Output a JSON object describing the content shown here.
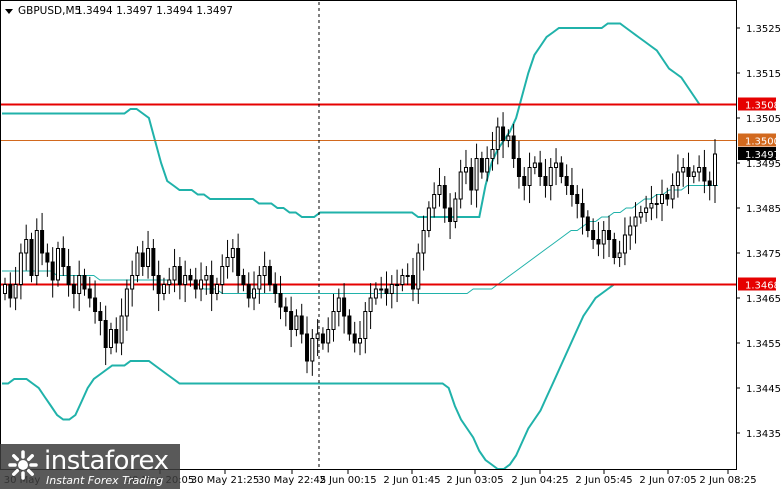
{
  "header": {
    "symbol": "GBPUSD,M5",
    "ohlc": "1.3494 1.3497 1.3494 1.3497"
  },
  "watermark": {
    "name": "instaforex",
    "tagline": "Instant Forex Trading"
  },
  "colors": {
    "background": "#ffffff",
    "bands": "#20b2aa",
    "middle_band": "#20b2aa",
    "candles": "#000000",
    "level_line": "#e60000",
    "level_1_3500": "#d2691e",
    "price_tag": "#000000"
  },
  "chart_data": {
    "type": "candlestick",
    "title": "",
    "ylim": [
      1.34295,
      1.35345
    ],
    "yticks": [
      "1.3525",
      "1.3515",
      "1.3505",
      "1.3495",
      "1.3485",
      "1.3475",
      "1.3465",
      "1.3455",
      "1.3445",
      "1.3435"
    ],
    "xticks": [
      "30 May",
      "30 May 20:05",
      "30 May 21:25",
      "30 May 22:45",
      "2 Jun 00:15",
      "2 Jun 01:45",
      "2 Jun 03:05",
      "2 Jun 04:25",
      "2 Jun 05:45",
      "2 Jun 07:05",
      "2 Jun 08:25"
    ],
    "grid": false,
    "separator_time": "2 Jun 00:00",
    "levels": [
      {
        "value": 1.3508,
        "label": "1.3508",
        "color": "#e60000"
      },
      {
        "value": 1.35,
        "label": "1.3500",
        "color": "#d2691e"
      },
      {
        "value": 1.3468,
        "label": "1.3468",
        "color": "#e60000"
      }
    ],
    "current_price": {
      "value": 1.3497,
      "label": "1.3497"
    },
    "close": [
      1.3468,
      1.3465,
      1.3468,
      1.3475,
      1.3478,
      1.347,
      1.348,
      1.3475,
      1.3473,
      1.3469,
      1.3476,
      1.3472,
      1.3468,
      1.3466,
      1.347,
      1.3467,
      1.3465,
      1.3462,
      1.346,
      1.3454,
      1.3458,
      1.3455,
      1.3461,
      1.3467,
      1.347,
      1.3475,
      1.3472,
      1.3476,
      1.347,
      1.3466,
      1.3468,
      1.3469,
      1.3472,
      1.3468,
      1.347,
      1.3469,
      1.3467,
      1.3469,
      1.347,
      1.3466,
      1.3468,
      1.3472,
      1.3474,
      1.3476,
      1.347,
      1.3468,
      1.3465,
      1.3467,
      1.347,
      1.3472,
      1.3468,
      1.3466,
      1.3463,
      1.3462,
      1.3458,
      1.3461,
      1.3457,
      1.3451,
      1.3456,
      1.3457,
      1.3455,
      1.3458,
      1.3462,
      1.3465,
      1.3461,
      1.3457,
      1.3455,
      1.3456,
      1.3462,
      1.3465,
      1.3467,
      1.3467,
      1.3466,
      1.3468,
      1.3468,
      1.347,
      1.347,
      1.3467,
      1.3475,
      1.348,
      1.3485,
      1.3488,
      1.349,
      1.3485,
      1.3482,
      1.3487,
      1.3493,
      1.3494,
      1.3489,
      1.3496,
      1.3493,
      1.3496,
      1.3498,
      1.3503,
      1.35,
      1.3501,
      1.3496,
      1.3492,
      1.349,
      1.3494,
      1.3495,
      1.3492,
      1.349,
      1.3494,
      1.3495,
      1.3492,
      1.349,
      1.3488,
      1.3486,
      1.3483,
      1.348,
      1.3478,
      1.3477,
      1.348,
      1.3478,
      1.3474,
      1.3475,
      1.3479,
      1.3481,
      1.3483,
      1.3484,
      1.3485,
      1.3486,
      1.3486,
      1.3488,
      1.3487,
      1.349,
      1.3493,
      1.3494,
      1.3492,
      1.3493,
      1.3494,
      1.3491,
      1.349,
      1.3497
    ],
    "bands": {
      "upper": [
        1.3506,
        1.3506,
        1.3506,
        1.3506,
        1.3506,
        1.3506,
        1.3506,
        1.3506,
        1.3506,
        1.3506,
        1.3506,
        1.3506,
        1.3506,
        1.3506,
        1.3506,
        1.3506,
        1.3506,
        1.3506,
        1.3506,
        1.3506,
        1.3506,
        1.3507,
        1.3507,
        1.3506,
        1.3505,
        1.35,
        1.3495,
        1.3491,
        1.349,
        1.3489,
        1.3489,
        1.3489,
        1.3488,
        1.3488,
        1.3487,
        1.3487,
        1.3487,
        1.3487,
        1.3487,
        1.3487,
        1.3487,
        1.3487,
        1.3486,
        1.3486,
        1.3486,
        1.3485,
        1.3485,
        1.3484,
        1.3484,
        1.3483,
        1.3483,
        1.3483,
        1.3484,
        1.3484,
        1.3484,
        1.3484,
        1.3484,
        1.3484,
        1.3484,
        1.3484,
        1.3484,
        1.3484,
        1.3484,
        1.3484,
        1.3484,
        1.3484,
        1.3484,
        1.3484,
        1.3483,
        1.3483,
        1.3483,
        1.3483,
        1.3483,
        1.3483,
        1.3483,
        1.3483,
        1.3483,
        1.3483,
        1.3483,
        1.349,
        1.3495,
        1.3498,
        1.35,
        1.3502,
        1.3505,
        1.351,
        1.3515,
        1.3519,
        1.3521,
        1.3523,
        1.3524,
        1.3525,
        1.3525,
        1.3525,
        1.3525,
        1.3525,
        1.3525,
        1.3525,
        1.3525,
        1.3526,
        1.3526,
        1.3526,
        1.3525,
        1.3524,
        1.3523,
        1.3522,
        1.3521,
        1.352,
        1.3518,
        1.3516,
        1.3515,
        1.3514,
        1.3512,
        1.351,
        1.3508,
        1.3508,
        1.3508,
        1.3508
      ],
      "middle": [
        1.3471,
        1.3471,
        1.3471,
        1.3471,
        1.3471,
        1.3471,
        1.3471,
        1.3471,
        1.3471,
        1.347,
        1.347,
        1.347,
        1.347,
        1.347,
        1.347,
        1.347,
        1.3469,
        1.3469,
        1.3469,
        1.3469,
        1.3469,
        1.3469,
        1.3469,
        1.3469,
        1.3469,
        1.3469,
        1.3469,
        1.3469,
        1.3468,
        1.3468,
        1.3468,
        1.3468,
        1.3468,
        1.3467,
        1.3467,
        1.3467,
        1.3466,
        1.3466,
        1.3466,
        1.3466,
        1.3466,
        1.3466,
        1.3466,
        1.3466,
        1.3466,
        1.3466,
        1.3466,
        1.3466,
        1.3466,
        1.3466,
        1.3466,
        1.3466,
        1.3466,
        1.3466,
        1.3466,
        1.3466,
        1.3466,
        1.3466,
        1.3466,
        1.3466,
        1.3466,
        1.3466,
        1.3466,
        1.3466,
        1.3466,
        1.3466,
        1.3466,
        1.3466,
        1.3466,
        1.3466,
        1.3466,
        1.3466,
        1.3466,
        1.3466,
        1.3466,
        1.3466,
        1.3466,
        1.3467,
        1.3467,
        1.3467,
        1.3467,
        1.3468,
        1.3469,
        1.347,
        1.3471,
        1.3472,
        1.3473,
        1.3474,
        1.3475,
        1.3476,
        1.3477,
        1.3478,
        1.3479,
        1.348,
        1.348,
        1.3481,
        1.3482,
        1.3482,
        1.3483,
        1.3483,
        1.3484,
        1.3484,
        1.3485,
        1.3485,
        1.3486,
        1.3487,
        1.3487,
        1.3488,
        1.3488,
        1.3489,
        1.3489,
        1.3489,
        1.349,
        1.349,
        1.349,
        1.349,
        1.349,
        1.349
      ],
      "lower": [
        1.3446,
        1.3446,
        1.3447,
        1.3447,
        1.3447,
        1.3446,
        1.3445,
        1.3443,
        1.3441,
        1.3439,
        1.3438,
        1.3438,
        1.3439,
        1.3442,
        1.3445,
        1.3447,
        1.3448,
        1.3449,
        1.345,
        1.345,
        1.345,
        1.3451,
        1.3451,
        1.3451,
        1.3451,
        1.345,
        1.3449,
        1.3448,
        1.3447,
        1.3446,
        1.3446,
        1.3446,
        1.3446,
        1.3446,
        1.3446,
        1.3446,
        1.3446,
        1.3446,
        1.3446,
        1.3446,
        1.3446,
        1.3446,
        1.3446,
        1.3446,
        1.3446,
        1.3446,
        1.3446,
        1.3446,
        1.3446,
        1.3446,
        1.3446,
        1.3446,
        1.3446,
        1.3446,
        1.3446,
        1.3446,
        1.3446,
        1.3446,
        1.3446,
        1.3446,
        1.3446,
        1.3446,
        1.3446,
        1.3446,
        1.3446,
        1.3446,
        1.3446,
        1.3446,
        1.3446,
        1.3446,
        1.3446,
        1.3446,
        1.3446,
        1.3445,
        1.3441,
        1.3438,
        1.3436,
        1.3434,
        1.3431,
        1.3429,
        1.3428,
        1.3427,
        1.3427,
        1.3428,
        1.343,
        1.3433,
        1.3436,
        1.3438,
        1.344,
        1.3443,
        1.3446,
        1.3449,
        1.3452,
        1.3455,
        1.3458,
        1.3461,
        1.3463,
        1.3465,
        1.3466,
        1.3467,
        1.3468,
        1.3468,
        1.3468,
        1.3468,
        1.3468,
        1.3468,
        1.3468,
        1.3468,
        1.3468,
        1.3468,
        1.3468,
        1.3468,
        1.3468,
        1.3468,
        1.3468,
        1.3468,
        1.3468,
        1.3468
      ]
    }
  }
}
